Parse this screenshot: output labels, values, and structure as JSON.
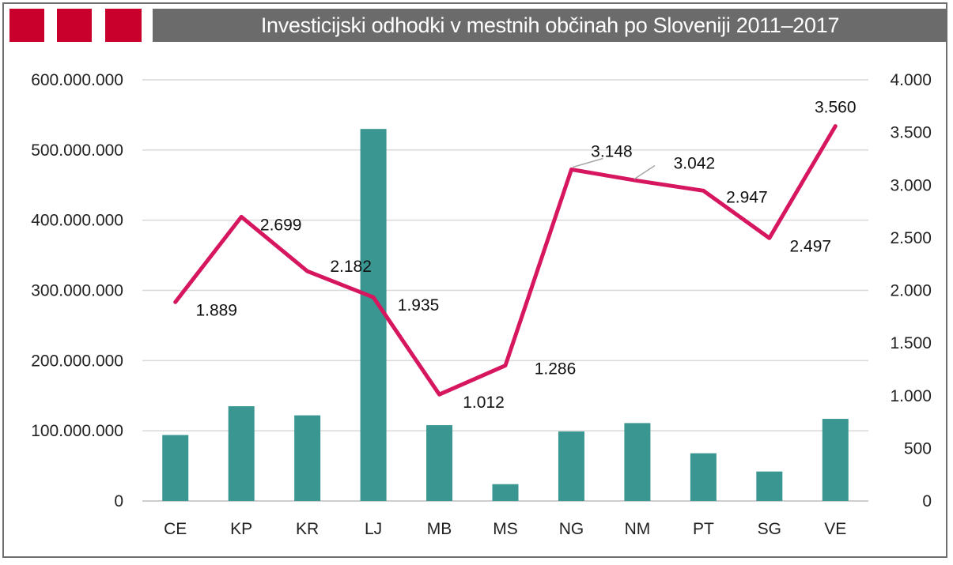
{
  "chart_data": {
    "type": "bar+line",
    "title": "Investicijski odhodki v mestnih občinah po Sloveniji 2011–2017",
    "categories": [
      "CE",
      "KP",
      "KR",
      "LJ",
      "MB",
      "MS",
      "NG",
      "NM",
      "PT",
      "SG",
      "VE"
    ],
    "series": [
      {
        "type": "bar",
        "axis": "left",
        "color": "#3a9691",
        "values": [
          94000000,
          135000000,
          122000000,
          530000000,
          108000000,
          24000000,
          99000000,
          111000000,
          68000000,
          42000000,
          117000000
        ]
      },
      {
        "type": "line",
        "axis": "right",
        "color": "#d6165f",
        "values": [
          1889,
          2699,
          2182,
          1935,
          1012,
          1286,
          3148,
          3042,
          2947,
          2497,
          3560
        ],
        "labels": [
          "1.889",
          "2.699",
          "2.182",
          "1.935",
          "1.012",
          "1.286",
          "3.148",
          "3.042",
          "2.947",
          "2.497",
          "3.560"
        ]
      }
    ],
    "y_left": {
      "ylim": [
        0,
        600000000
      ],
      "ticks": [
        0,
        100000000,
        200000000,
        300000000,
        400000000,
        500000000,
        600000000
      ],
      "tick_labels": [
        "0",
        "100.000.000",
        "200.000.000",
        "300.000.000",
        "400.000.000",
        "500.000.000",
        "600.000.000"
      ]
    },
    "y_right": {
      "ylim": [
        0,
        4000
      ],
      "ticks": [
        0,
        500,
        1000,
        1500,
        2000,
        2500,
        3000,
        3500,
        4000
      ],
      "tick_labels": [
        "0",
        "500",
        "1.000",
        "1.500",
        "2.000",
        "2.500",
        "3.000",
        "3.500",
        "4.000"
      ]
    },
    "grid": true,
    "legend": "none",
    "header_accent_color": "#c9002b",
    "header_bar_color": "#6b6b6b"
  }
}
